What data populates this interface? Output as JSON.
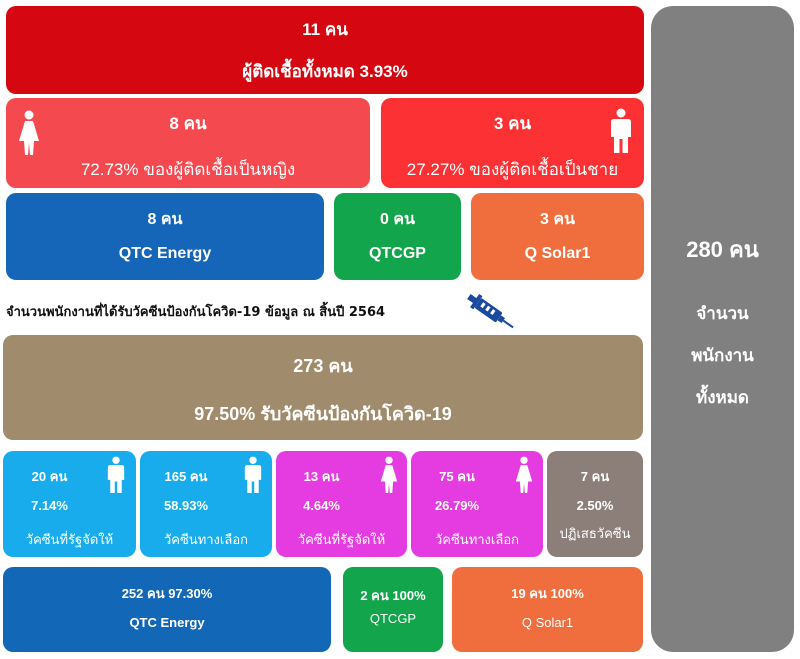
{
  "infected": {
    "total": {
      "count": "11 คน",
      "label": "ผู้ติดเชื้อทั้งหมด 3.93%"
    },
    "female": {
      "count": "8 คน",
      "label": "72.73% ของผู้ติดเชื้อเป็นหญิง",
      "icon": "female-person-icon"
    },
    "male": {
      "count": "3 คน",
      "label": "27.27% ของผู้ติดเชื้อเป็นชาย",
      "icon": "male-person-icon"
    },
    "companies": [
      {
        "count": "8 คน",
        "name": "QTC Energy"
      },
      {
        "count": "0 คน",
        "name": "QTCGP"
      },
      {
        "count": "3 คน",
        "name": "Q Solar1"
      }
    ]
  },
  "vaccine_caption": "จำนวนพนักงานที่ได้รับวัคซีนป้องกันโควิด-19 ข้อมูล ณ สิ้นปี 2564",
  "syringe_icon": "syringe-icon",
  "vaccinated": {
    "total": {
      "count": "273 คน",
      "label": "97.50% รับวัคซีนป้องกันโควิด-19"
    },
    "breakdown": [
      {
        "count": "20 คน",
        "percent": "7.14%",
        "label": "วัคซีนที่รัฐจัดให้",
        "icon": "male-person-icon",
        "color": "#18acec"
      },
      {
        "count": "165 คน",
        "percent": "58.93%",
        "label": "วัคซีนทางเลือก",
        "icon": "male-person-icon",
        "color": "#18acec"
      },
      {
        "count": "13 คน",
        "percent": "4.64%",
        "label": "วัคซีนที่รัฐจัดให้",
        "icon": "female-person-icon",
        "color": "#e43ce0"
      },
      {
        "count": "75 คน",
        "percent": "26.79%",
        "label": "วัคซีนทางเลือก",
        "icon": "female-person-icon",
        "color": "#e43ce0"
      },
      {
        "count": "7 คน",
        "percent": "2.50%",
        "label": "ปฏิเสธวัคซีน",
        "color": "#8c7f79"
      }
    ],
    "companies": [
      {
        "label": "252 คน 97.30%",
        "name": "QTC Energy"
      },
      {
        "label": "2 คน 100%",
        "name": "QTCGP"
      },
      {
        "label": "19 คน 100%",
        "name": "Q Solar1"
      }
    ]
  },
  "total_employees": {
    "count": "280 คน",
    "line1": "จำนวน",
    "line2": "พนักงาน",
    "line3": "ทั้งหมด"
  }
}
